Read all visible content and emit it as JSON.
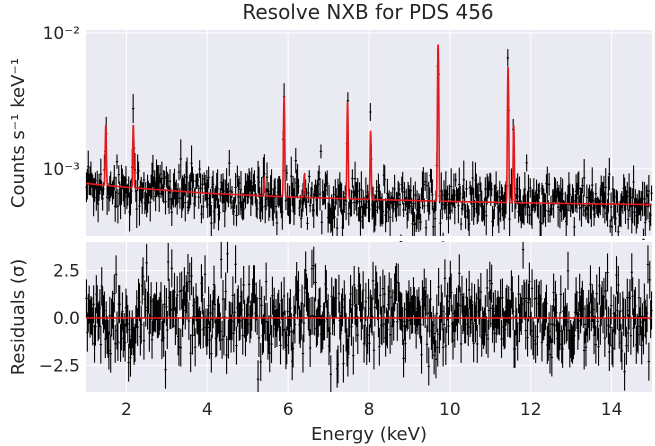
{
  "chart_data": [
    {
      "type": "line",
      "title": "Resolve NXB for PDS 456",
      "xlabel": "",
      "ylabel": "Counts s⁻¹ keV⁻¹",
      "xlim": [
        1.0,
        15.0
      ],
      "ylim": [
        0.00032,
        0.0105
      ],
      "yscale": "log",
      "x_ticks": [
        2,
        4,
        6,
        8,
        10,
        12,
        14
      ],
      "y_tick_labels": [
        "10⁻³",
        "10⁻²"
      ],
      "y_ticks": [
        0.001,
        0.01
      ],
      "grid": true,
      "continuum": {
        "x": [
          1.0,
          2.0,
          4.0,
          6.0,
          8.0,
          10.0,
          12.0,
          15.0
        ],
        "y": [
          0.00078,
          0.00073,
          0.00066,
          0.00062,
          0.000595,
          0.000575,
          0.00056,
          0.000545
        ]
      },
      "lines": [
        {
          "energy": 1.49,
          "peak": 0.0021
        },
        {
          "energy": 2.17,
          "peak": 0.0021
        },
        {
          "energy": 5.41,
          "peak": 0.00085
        },
        {
          "energy": 5.9,
          "peak": 0.0034
        },
        {
          "energy": 6.4,
          "peak": 0.0009
        },
        {
          "energy": 7.47,
          "peak": 0.0031
        },
        {
          "energy": 8.04,
          "peak": 0.0019
        },
        {
          "energy": 9.71,
          "peak": 0.0082
        },
        {
          "energy": 11.44,
          "peak": 0.0056
        },
        {
          "energy": 11.58,
          "peak": 0.0021
        }
      ],
      "series": [
        {
          "name": "",
          "role": "data",
          "color": "#000000",
          "points": 630,
          "x_range": [
            1.0,
            15.0
          ]
        },
        {
          "name": "",
          "role": "model",
          "color": "#e41a1c"
        }
      ]
    },
    {
      "type": "line",
      "xlabel": "Energy (keV)",
      "ylabel": "Residuals (σ)",
      "xlim": [
        1.0,
        15.0
      ],
      "ylim": [
        -3.9,
        4.0
      ],
      "x_ticks": [
        2,
        4,
        6,
        8,
        10,
        12,
        14
      ],
      "x_tick_labels": [
        "2",
        "4",
        "6",
        "8",
        "10",
        "12",
        "14"
      ],
      "y_ticks": [
        -2.5,
        0.0,
        2.5
      ],
      "y_tick_labels": [
        "−2.5",
        "0.0",
        "2.5"
      ],
      "grid": true,
      "zero_line": 0.0,
      "series": [
        {
          "name": "",
          "role": "residuals",
          "color": "#000000",
          "points": 630,
          "x_range": [
            1.0,
            15.0
          ]
        },
        {
          "name": "",
          "role": "zero-model",
          "color": "#e41a1c",
          "values": [
            0.0,
            0.0
          ]
        }
      ]
    }
  ]
}
